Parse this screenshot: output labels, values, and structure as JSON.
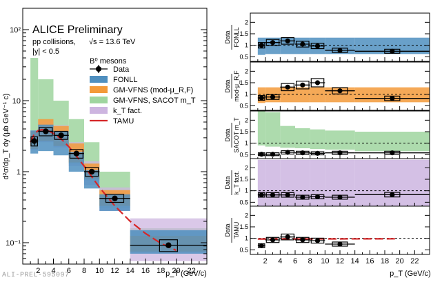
{
  "chart_data": {
    "type": "scatter",
    "experiment": "ALICE Preliminary",
    "system": "pp collisions,",
    "energy": "√s = 13.6 TeV",
    "rapidity": "|y| < 0.5",
    "particle": "B⁰ mesons",
    "watermark": "ALI-PREL-595097",
    "xlabel": "p_T (GeV/c)",
    "ylabel": "d²σ/dp_T dy (μb GeV⁻¹ c)",
    "xlim": [
      0,
      24
    ],
    "xticks": [
      2,
      4,
      6,
      8,
      10,
      12,
      14,
      16,
      18,
      20,
      22
    ],
    "ylim_main": [
      0.05,
      200
    ],
    "main_ytick_labels": [
      {
        "v": 0.1,
        "t": "10⁻¹"
      },
      {
        "v": 1,
        "t": "1"
      },
      {
        "v": 10,
        "t": "10"
      },
      {
        "v": 100,
        "t": "10²"
      }
    ],
    "legend": {
      "data": "Data",
      "fonll": "FONLL",
      "gmvfns_mu": "GM-VFNS (mod-μ_R,F)",
      "gmvfns_sacot": "GM-VFNS, SACOT m_T",
      "kt": "k_T fact.",
      "tamu": "TAMU"
    },
    "colors": {
      "fonll": "#4f8fbf",
      "gm_mu": "#f39a3a",
      "sacot": "#9fd59f",
      "kt": "#cdb5e0",
      "tamu": "#d62728",
      "data": "#000000"
    },
    "bins": [
      [
        1,
        2
      ],
      [
        2,
        4
      ],
      [
        4,
        6
      ],
      [
        6,
        8
      ],
      [
        8,
        10
      ],
      [
        10,
        14
      ],
      [
        14,
        24
      ]
    ],
    "data_points": [
      {
        "x": 1.5,
        "xlo": 1,
        "xhi": 2,
        "y": 2.7,
        "stat": 0.35,
        "syslo": 2.3,
        "syshi": 3.1
      },
      {
        "x": 3,
        "xlo": 2,
        "xhi": 4,
        "y": 3.7,
        "stat": 0.3,
        "syslo": 3.2,
        "syshi": 4.2
      },
      {
        "x": 5,
        "xlo": 4,
        "xhi": 6,
        "y": 3.25,
        "stat": 0.25,
        "syslo": 2.85,
        "syshi": 3.7
      },
      {
        "x": 7,
        "xlo": 6,
        "xhi": 8,
        "y": 1.8,
        "stat": 0.15,
        "syslo": 1.55,
        "syshi": 2.05
      },
      {
        "x": 9,
        "xlo": 8,
        "xhi": 10,
        "y": 1.0,
        "stat": 0.08,
        "syslo": 0.86,
        "syshi": 1.15
      },
      {
        "x": 12,
        "xlo": 10,
        "xhi": 14,
        "y": 0.42,
        "stat": 0.03,
        "syslo": 0.37,
        "syshi": 0.48
      },
      {
        "x": 19,
        "xlo": 14,
        "xhi": 24,
        "y": 0.092,
        "stat": 0.006,
        "syslo": 0.075,
        "syshi": 0.11
      }
    ],
    "models_main": {
      "kt": {
        "lo": [
          2.0,
          2.6,
          2.2,
          1.2,
          0.65,
          0.28,
          0.055
        ],
        "hi": [
          3.8,
          5.2,
          4.5,
          2.6,
          1.4,
          0.6,
          0.22
        ]
      },
      "sacot": {
        "lo": [
          2.2,
          2.9,
          2.4,
          1.3,
          0.75,
          0.31,
          0.075
        ],
        "hi": [
          40,
          20,
          10,
          5.5,
          2.6,
          1.0,
          0.16
        ]
      },
      "gm_mu": {
        "lo": [
          2.1,
          2.7,
          2.3,
          1.35,
          0.8,
          0.33,
          0.075
        ],
        "hi": [
          3.7,
          5.5,
          4.4,
          2.5,
          1.3,
          0.55,
          0.125
        ]
      },
      "fonll": {
        "lo": [
          1.8,
          1.95,
          1.7,
          1.0,
          0.58,
          0.28,
          0.07
        ],
        "hi": [
          3.8,
          4.6,
          3.7,
          1.9,
          1.05,
          0.48,
          0.15
        ]
      },
      "tamu": {
        "x": [
          1,
          1.5,
          2,
          2.5,
          3,
          3.5,
          4,
          5,
          6,
          7,
          8,
          9,
          10,
          12,
          14,
          16,
          18,
          20
        ],
        "y": [
          2.6,
          3.4,
          3.8,
          3.9,
          3.85,
          3.7,
          3.45,
          2.9,
          2.25,
          1.65,
          1.2,
          0.85,
          0.6,
          0.33,
          0.2,
          0.135,
          0.098,
          0.078
        ]
      }
    },
    "ratio_panels": [
      {
        "label1": "Data",
        "label2": "FONLL",
        "ylim": [
          0.3,
          2.4
        ],
        "yticks": [
          0.5,
          1,
          1.5,
          2
        ],
        "band": {
          "color": "#4f8fbf",
          "lo": [
            0.58,
            0.62,
            0.62,
            0.62,
            0.62,
            0.62,
            0.62
          ],
          "hi": [
            1.33,
            1.33,
            1.33,
            1.33,
            1.33,
            1.33,
            1.33
          ]
        },
        "ratio": [
          1.0,
          1.12,
          1.19,
          1.05,
          0.97,
          0.78,
          0.74
        ]
      },
      {
        "label1": "Data",
        "label2": "mod-μ_R,F",
        "ylim": [
          0.3,
          2.4
        ],
        "yticks": [
          0.5,
          1,
          1.5,
          2
        ],
        "band": {
          "color": "#f39a3a",
          "lo": [
            0.62,
            0.65,
            0.65,
            0.65,
            0.65,
            0.65,
            0.65
          ],
          "hi": [
            1.3,
            1.3,
            1.3,
            1.3,
            1.3,
            1.3,
            1.3
          ]
        },
        "ratio": [
          0.84,
          0.88,
          1.31,
          1.4,
          1.5,
          1.15,
          0.82
        ]
      },
      {
        "label1": "Data",
        "label2": "SACOT m_T",
        "ylim": [
          0.3,
          2.4
        ],
        "yticks": [
          0.5,
          1,
          1.5,
          2
        ],
        "band": {
          "color": "#9fd59f",
          "lo": [
            0.9,
            0.85,
            0.8,
            0.78,
            0.75,
            0.72,
            0.65
          ],
          "hi": [
            2.4,
            2.35,
            1.75,
            1.65,
            1.6,
            1.55,
            1.5
          ]
        },
        "ratio": [
          0.52,
          0.52,
          0.6,
          0.58,
          0.56,
          0.58,
          0.58
        ]
      },
      {
        "label1": "Data",
        "label2": "k_T fact.",
        "ylim": [
          0.3,
          2.4
        ],
        "yticks": [
          0.5,
          1,
          1.5,
          2
        ],
        "band": {
          "color": "#cdb5e0",
          "lo": [
            0.32,
            0.32,
            0.32,
            0.32,
            0.32,
            0.32,
            0.32
          ],
          "hi": [
            2.35,
            2.35,
            2.35,
            2.35,
            2.35,
            2.35,
            2.35
          ]
        },
        "ratio": [
          0.82,
          0.82,
          0.82,
          0.72,
          0.74,
          0.72,
          0.83
        ]
      },
      {
        "label1": "Data",
        "label2": "TAMU",
        "ylim": [
          0.3,
          2.4
        ],
        "yticks": [
          0.5,
          1,
          1.5,
          2
        ],
        "band": null,
        "ratio": [
          0.68,
          0.93,
          1.06,
          0.93,
          0.9,
          0.75,
          null
        ]
      }
    ]
  }
}
